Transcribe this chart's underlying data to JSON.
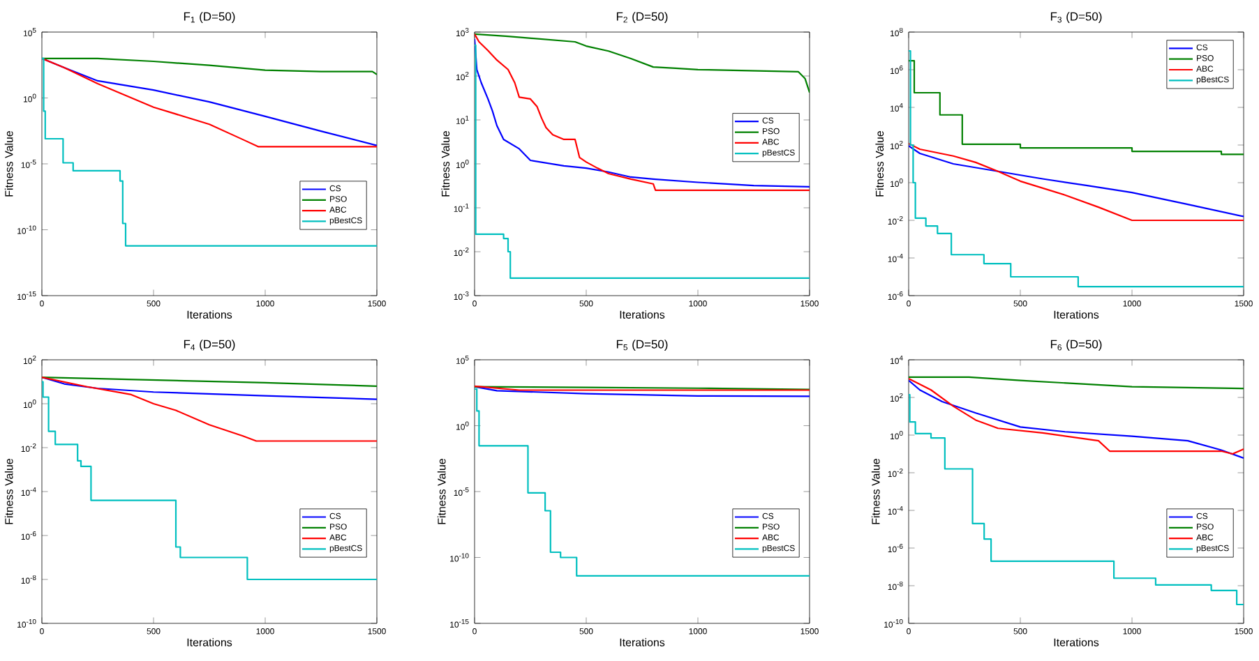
{
  "chart_data": [
    {
      "type": "line",
      "title": "F$_{1}$ (D=50)",
      "xlabel": "Iterations",
      "ylabel": "Fitness Value",
      "log": true,
      "legend": "bottom right",
      "xlim": [
        0,
        1500
      ],
      "xticks": [
        0,
        500,
        1000,
        1500
      ],
      "ylim": [
        1e-15,
        100000.0
      ],
      "yticks": [
        {
          "value": 1e-15,
          "label": "10$^{-15}$"
        },
        {
          "value": 1e-10,
          "label": "10$^{-10}$"
        },
        {
          "value": 1e-05,
          "label": "10$^{-5}$"
        },
        {
          "value": 1,
          "label": "10$^{0}$"
        },
        {
          "value": 100000.0,
          "label": "10$^{5}$"
        }
      ],
      "series": [
        {
          "name": "CS",
          "color": "#0000ff",
          "x": [
            0,
            100,
            250,
            500,
            750,
            1000,
            1250,
            1500
          ],
          "values": [
            1000.0,
            200.0,
            20.0,
            4,
            0.5,
            0.04,
            0.003,
            0.00025
          ]
        },
        {
          "name": "PSO",
          "color": "#008000",
          "x": [
            0,
            250,
            500,
            750,
            1000,
            1250,
            1480,
            1500
          ],
          "values": [
            1000.0,
            1000.0,
            600.0,
            300.0,
            130.0,
            100.0,
            100.0,
            60.0
          ]
        },
        {
          "name": "ABC",
          "color": "#ff0000",
          "x": [
            0,
            100,
            250,
            500,
            750,
            900,
            970,
            1500
          ],
          "values": [
            1000.0,
            200.0,
            12.0,
            0.2,
            0.01,
            0.0007,
            0.0002,
            0.0002
          ]
        },
        {
          "name": "pBestCS",
          "color": "#00bfbf",
          "type": "step",
          "x": [
            0,
            8,
            15,
            95,
            140,
            350,
            362,
            375,
            1500
          ],
          "values": [
            1000.0,
            0.1,
            0.0008,
            1.2e-05,
            3e-06,
            5e-07,
            3e-10,
            6e-12,
            6e-12
          ]
        }
      ]
    },
    {
      "type": "line",
      "title": "F$_{2}$ (D=50)",
      "xlabel": "Iterations",
      "ylabel": "Fitness Value",
      "log": true,
      "legend": "right",
      "xlim": [
        0,
        1500
      ],
      "xticks": [
        0,
        500,
        1000,
        1500
      ],
      "ylim": [
        0.001,
        1000.0
      ],
      "yticks": [
        {
          "value": 0.001,
          "label": "10$^{-3}$"
        },
        {
          "value": 0.01,
          "label": "10$^{-2}$"
        },
        {
          "value": 0.1,
          "label": "10$^{-1}$"
        },
        {
          "value": 1,
          "label": "10$^{0}$"
        },
        {
          "value": 10.0,
          "label": "10$^{1}$"
        },
        {
          "value": 100.0,
          "label": "10$^{2}$"
        },
        {
          "value": 1000.0,
          "label": "10$^{3}$"
        }
      ],
      "series": [
        {
          "name": "CS",
          "color": "#0000ff",
          "x": [
            0,
            10,
            30,
            60,
            80,
            100,
            130,
            200,
            250,
            400,
            500,
            600,
            700,
            800,
            1000,
            1250,
            1500
          ],
          "values": [
            700.0,
            140.0,
            70.0,
            30.0,
            16.0,
            7.4,
            3.6,
            2.2,
            1.2,
            0.9,
            0.8,
            0.65,
            0.5,
            0.45,
            0.38,
            0.32,
            0.3
          ]
        },
        {
          "name": "PSO",
          "color": "#008000",
          "x": [
            0,
            150,
            450,
            500,
            600,
            700,
            800,
            900,
            1000,
            1450,
            1480,
            1500
          ],
          "values": [
            900.0,
            800.0,
            600.0,
            480.0,
            370.0,
            250.0,
            160.0,
            150.0,
            140.0,
            125.0,
            87.0,
            42.0
          ]
        },
        {
          "name": "ABC",
          "color": "#ff0000",
          "x": [
            0,
            20,
            60,
            100,
            150,
            180,
            200,
            250,
            280,
            300,
            320,
            350,
            400,
            450,
            470,
            500,
            550,
            600,
            700,
            800,
            810,
            1500
          ],
          "values": [
            900.0,
            600.0,
            380.0,
            230.0,
            140.0,
            70.0,
            33.0,
            30.0,
            20.0,
            11.0,
            6.7,
            4.6,
            3.6,
            3.6,
            1.4,
            1.1,
            0.8,
            0.6,
            0.45,
            0.35,
            0.25,
            0.25
          ]
        },
        {
          "name": "pBestCS",
          "color": "#00bfbf",
          "type": "step",
          "x": [
            0,
            5,
            130,
            150,
            160,
            1500
          ],
          "values": [
            500.0,
            0.025,
            0.02,
            0.01,
            0.0025,
            0.0025
          ]
        }
      ]
    },
    {
      "type": "line",
      "title": "F$_{3}$ (D=50)",
      "xlabel": "Iterations",
      "ylabel": "Fitness Value",
      "log": true,
      "legend": "top right",
      "xlim": [
        0,
        1500
      ],
      "xticks": [
        0,
        500,
        1000,
        1500
      ],
      "ylim": [
        1e-06,
        100000000.0
      ],
      "yticks": [
        {
          "value": 1e-06,
          "label": "10$^{-6}$"
        },
        {
          "value": 0.0001,
          "label": "10$^{-4}$"
        },
        {
          "value": 0.01,
          "label": "10$^{-2}$"
        },
        {
          "value": 1,
          "label": "10$^{0}$"
        },
        {
          "value": 100.0,
          "label": "10$^{2}$"
        },
        {
          "value": 10000.0,
          "label": "10$^{4}$"
        },
        {
          "value": 1000000.0,
          "label": "10$^{6}$"
        },
        {
          "value": 100000000.0,
          "label": "10$^{8}$"
        }
      ],
      "series": [
        {
          "name": "CS",
          "color": "#0000ff",
          "x": [
            0,
            50,
            200,
            400,
            600,
            800,
            1000,
            1250,
            1500
          ],
          "values": [
            90.0,
            36.0,
            10.0,
            4,
            1.6,
            0.7,
            0.3,
            0.07,
            0.016
          ]
        },
        {
          "name": "PSO",
          "color": "#008000",
          "type": "step",
          "x": [
            0,
            25,
            140,
            240,
            500,
            1000,
            1400,
            1500
          ],
          "values": [
            3000000.0,
            60000.0,
            4000.0,
            110.0,
            70.0,
            46.0,
            32.0,
            32.0
          ]
        },
        {
          "name": "ABC",
          "color": "#ff0000",
          "x": [
            0,
            50,
            200,
            300,
            400,
            500,
            700,
            850,
            1000,
            1500
          ],
          "values": [
            120.0,
            60.0,
            26.0,
            12.0,
            4,
            1.2,
            0.22,
            0.05,
            0.01,
            0.01
          ]
        },
        {
          "name": "pBestCS",
          "color": "#00bfbf",
          "type": "step",
          "x": [
            0,
            8,
            20,
            30,
            77,
            129,
            191,
            337,
            457,
            759,
            1500
          ],
          "values": [
            10000000.0,
            100.0,
            1,
            0.013,
            0.005,
            0.002,
            0.00015,
            5e-05,
            1e-05,
            3e-06,
            3e-06
          ]
        }
      ]
    },
    {
      "type": "line",
      "title": "F$_{4}$ (D=50)",
      "xlabel": "Iterations",
      "ylabel": "Fitness Value",
      "log": true,
      "legend": "bottom right",
      "xlim": [
        0,
        1500
      ],
      "xticks": [
        0,
        500,
        1000,
        1500
      ],
      "ylim": [
        1e-10,
        100.0
      ],
      "yticks": [
        {
          "value": 1e-10,
          "label": "10$^{-10}$"
        },
        {
          "value": 1e-08,
          "label": "10$^{-8}$"
        },
        {
          "value": 1e-06,
          "label": "10$^{-6}$"
        },
        {
          "value": 0.0001,
          "label": "10$^{-4}$"
        },
        {
          "value": 0.01,
          "label": "10$^{-2}$"
        },
        {
          "value": 1,
          "label": "10$^{0}$"
        },
        {
          "value": 100.0,
          "label": "10$^{2}$"
        }
      ],
      "series": [
        {
          "name": "CS",
          "color": "#0000ff",
          "x": [
            0,
            100,
            250,
            500,
            1000,
            1500
          ],
          "values": [
            16,
            8,
            5,
            3.4,
            2.3,
            1.6
          ]
        },
        {
          "name": "PSO",
          "color": "#008000",
          "x": [
            0,
            500,
            1000,
            1500
          ],
          "values": [
            16,
            12,
            9,
            6.3
          ]
        },
        {
          "name": "ABC",
          "color": "#ff0000",
          "x": [
            0,
            200,
            400,
            500,
            600,
            750,
            900,
            960,
            1500
          ],
          "values": [
            16,
            6,
            2.6,
            1,
            0.5,
            0.11,
            0.034,
            0.02,
            0.02
          ]
        },
        {
          "name": "pBestCS",
          "color": "#00bfbf",
          "type": "step",
          "x": [
            0,
            5,
            30,
            60,
            160,
            175,
            220,
            600,
            620,
            920,
            1500
          ],
          "values": [
            10,
            2,
            0.055,
            0.014,
            0.0025,
            0.0014,
            4e-05,
            3e-07,
            1e-07,
            1e-08,
            1e-08
          ]
        }
      ]
    },
    {
      "type": "line",
      "title": "F$_{5}$ (D=50)",
      "xlabel": "Iterations",
      "ylabel": "Fitness Value",
      "log": true,
      "legend": "bottom right",
      "xlim": [
        0,
        1500
      ],
      "xticks": [
        0,
        500,
        1000,
        1500
      ],
      "ylim": [
        1e-15,
        100000.0
      ],
      "yticks": [
        {
          "value": 1e-15,
          "label": "10$^{-15}$"
        },
        {
          "value": 1e-10,
          "label": "10$^{-10}$"
        },
        {
          "value": 1e-05,
          "label": "10$^{-5}$"
        },
        {
          "value": 1,
          "label": "10$^{0}$"
        },
        {
          "value": 100000.0,
          "label": "10$^{5}$"
        }
      ],
      "series": [
        {
          "name": "CS",
          "color": "#0000ff",
          "x": [
            0,
            100,
            500,
            1000,
            1500
          ],
          "values": [
            900.0,
            450.0,
            270.0,
            180.0,
            170.0
          ]
        },
        {
          "name": "PSO",
          "color": "#008000",
          "x": [
            0,
            500,
            1000,
            1500
          ],
          "values": [
            900.0,
            800.0,
            700.0,
            560.0
          ]
        },
        {
          "name": "ABC",
          "color": "#ff0000",
          "x": [
            0,
            200,
            1500
          ],
          "values": [
            1000.0,
            500.0,
            500.0
          ]
        },
        {
          "name": "pBestCS",
          "color": "#00bfbf",
          "type": "step",
          "x": [
            0,
            10,
            20,
            239,
            316,
            340,
            385,
            457,
            1500
          ],
          "values": [
            600.0,
            13,
            0.03,
            8e-06,
            3.5e-07,
            2.5e-10,
            1e-10,
            4e-12,
            4e-12
          ]
        }
      ]
    },
    {
      "type": "line",
      "title": "F$_{6}$ (D=50)",
      "xlabel": "Iterations",
      "ylabel": "Fitness Value",
      "log": true,
      "legend": "bottom right",
      "xlim": [
        0,
        1500
      ],
      "xticks": [
        0,
        500,
        1000,
        1500
      ],
      "ylim": [
        1e-10,
        10000.0
      ],
      "yticks": [
        {
          "value": 1e-10,
          "label": "10$^{-10}$"
        },
        {
          "value": 1e-08,
          "label": "10$^{-8}$"
        },
        {
          "value": 1e-06,
          "label": "10$^{-6}$"
        },
        {
          "value": 0.0001,
          "label": "10$^{-4}$"
        },
        {
          "value": 0.01,
          "label": "10$^{-2}$"
        },
        {
          "value": 1,
          "label": "10$^{0}$"
        },
        {
          "value": 100.0,
          "label": "10$^{2}$"
        },
        {
          "value": 10000.0,
          "label": "10$^{4}$"
        }
      ],
      "series": [
        {
          "name": "CS",
          "color": "#0000ff",
          "x": [
            0,
            50,
            150,
            300,
            500,
            700,
            1000,
            1250,
            1400,
            1500
          ],
          "values": [
            800.0,
            250.0,
            60.0,
            15.0,
            2.7,
            1.5,
            0.87,
            0.5,
            0.16,
            0.06
          ]
        },
        {
          "name": "PSO",
          "color": "#008000",
          "x": [
            0,
            270,
            500,
            1000,
            1500
          ],
          "values": [
            1200.0,
            1200.0,
            800.0,
            370.0,
            300.0
          ]
        },
        {
          "name": "ABC",
          "color": "#ff0000",
          "x": [
            0,
            100,
            200,
            300,
            400,
            600,
            850,
            900,
            1400,
            1450,
            1500
          ],
          "values": [
            1000.0,
            250.0,
            34.0,
            6.3,
            2.3,
            1.3,
            0.5,
            0.14,
            0.14,
            0.1,
            0.18
          ]
        },
        {
          "name": "pBestCS",
          "color": "#00bfbf",
          "type": "step",
          "x": [
            0,
            5,
            30,
            100,
            162,
            286,
            338,
            369,
            919,
            1106,
            1355,
            1469,
            1500
          ],
          "values": [
            140.0,
            5,
            1.2,
            0.7,
            0.016,
            2e-05,
            3e-06,
            2e-07,
            2.5e-08,
            1.1e-08,
            5.6e-09,
            1e-09,
            1e-09
          ]
        }
      ]
    }
  ]
}
